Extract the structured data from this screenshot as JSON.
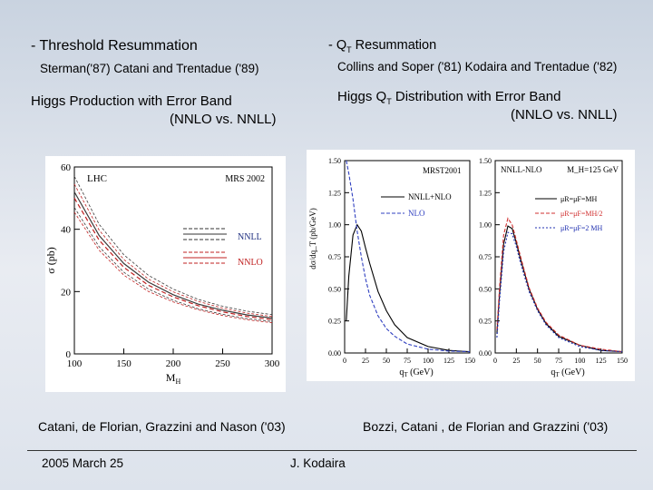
{
  "left": {
    "heading": "Threshold Resummation",
    "bullet": "-",
    "refs": "Sterman('87) Catani and Trentadue ('89)",
    "subtitle_line1": "Higgs Production with Error Band",
    "subtitle_line2": "(NNLO vs. NNLL)",
    "caption": "Catani, de Florian, Grazzini and Nason ('03)"
  },
  "right": {
    "bullet": "-",
    "heading_q": "Q",
    "heading_sub": "T",
    "heading_rest": " Resummation",
    "refs": "Collins and Soper ('81) Kodaira and Trentadue ('82)",
    "subtitle_pre": "Higgs Q",
    "subtitle_sub": "T",
    "subtitle_post": " Distribution with Error Band",
    "subtitle_line2": "(NNLO vs. NNLL)",
    "caption": "Bozzi, Catani , de Florian and Grazzini ('03)"
  },
  "footer": {
    "date": "2005 March 25",
    "author": "J. Kodaira"
  },
  "chart_data": [
    {
      "type": "line",
      "labels": {
        "lhc": "LHC",
        "pdf": "MRS 2002",
        "nnll": "NNLL",
        "nnlo": "NNLO"
      },
      "ylabel": "σ (pb)",
      "xlabel": "M_H",
      "xlabel_main": "M",
      "xlabel_sub": "H",
      "x_ticks": [
        "100",
        "150",
        "200",
        "250",
        "300"
      ],
      "y_ticks": [
        "0",
        "20",
        "40",
        "60"
      ],
      "xlim": [
        100,
        300
      ],
      "ylim": [
        0,
        60
      ],
      "x": [
        100,
        125,
        150,
        175,
        200,
        225,
        250,
        275,
        300
      ],
      "series": [
        {
          "name": "NNLL",
          "values": [
            52,
            38,
            29,
            23,
            19,
            16,
            14,
            12.5,
            11.5
          ],
          "color": "#3a3a3a"
        },
        {
          "name": "NNLO",
          "values": [
            50,
            36.5,
            27.8,
            22,
            18.3,
            15.5,
            13.5,
            12,
            11
          ],
          "color": "#c02020"
        }
      ],
      "band_spread": [
        5,
        3.6,
        2.8,
        2.2,
        1.8,
        1.5,
        1.3,
        1.2,
        1.1
      ]
    },
    {
      "type": "line",
      "labels": {
        "pdf": "MRST2001",
        "nnll_nlo": "NNLL+NLO",
        "nlo": "NLO"
      },
      "ylabel": "dσ/dq_T (pb/GeV)",
      "xlabel": "q_T (GeV)",
      "xlabel_main": "q",
      "xlabel_sub": "T",
      "xlabel_unit": "(GeV)",
      "x_ticks": [
        "0",
        "25",
        "50",
        "75",
        "100",
        "125",
        "150"
      ],
      "y_ticks": [
        "0.00",
        "0.25",
        "0.50",
        "0.75",
        "1.00",
        "1.25",
        "1.50"
      ],
      "xlim": [
        0,
        150
      ],
      "ylim": [
        0,
        1.5
      ],
      "x": [
        2,
        5,
        10,
        15,
        20,
        25,
        30,
        40,
        50,
        60,
        75,
        100,
        125,
        150
      ],
      "series": [
        {
          "name": "NNLL+NLO",
          "values": [
            0.25,
            0.6,
            0.92,
            1.0,
            0.95,
            0.82,
            0.7,
            0.48,
            0.33,
            0.22,
            0.12,
            0.05,
            0.02,
            0.01
          ],
          "color": "#000000"
        },
        {
          "name": "NLO",
          "values": [
            1.5,
            1.4,
            1.2,
            0.95,
            0.75,
            0.58,
            0.45,
            0.29,
            0.19,
            0.13,
            0.07,
            0.03,
            0.015,
            0.01
          ],
          "color": "#3040c0"
        }
      ]
    },
    {
      "type": "line",
      "labels": {
        "title_left": "NNLL-NLO",
        "title_right": "M_H=125 GeV",
        "leg1": "μR=μF=MH",
        "leg2": "μR=μF=MH/2",
        "leg3": "μR=μF=2 MH"
      },
      "ylabel": "",
      "xlabel": "q_T (GeV)",
      "xlabel_main": "q",
      "xlabel_sub": "T",
      "xlabel_unit": "(GeV)",
      "x_ticks": [
        "0",
        "25",
        "50",
        "75",
        "100",
        "125",
        "150"
      ],
      "y_ticks": [
        "0.00",
        "0.25",
        "0.50",
        "0.75",
        "1.00",
        "1.25",
        "1.50"
      ],
      "xlim": [
        0,
        150
      ],
      "ylim": [
        0,
        1.5
      ],
      "x": [
        2,
        5,
        10,
        15,
        20,
        25,
        30,
        40,
        50,
        60,
        75,
        100,
        125,
        150
      ],
      "series": [
        {
          "name": "μR=μF=MH",
          "values": [
            0.15,
            0.45,
            0.85,
            0.99,
            0.97,
            0.86,
            0.73,
            0.5,
            0.34,
            0.23,
            0.13,
            0.06,
            0.02,
            0.01
          ],
          "color": "#000000"
        },
        {
          "name": "μR=μF=MH/2",
          "values": [
            0.18,
            0.5,
            0.92,
            1.05,
            1.0,
            0.88,
            0.75,
            0.51,
            0.35,
            0.24,
            0.14,
            0.06,
            0.03,
            0.01
          ],
          "color": "#d03030"
        },
        {
          "name": "μR=μF=2 MH",
          "values": [
            0.12,
            0.4,
            0.79,
            0.94,
            0.93,
            0.83,
            0.7,
            0.48,
            0.33,
            0.22,
            0.12,
            0.05,
            0.02,
            0.01
          ],
          "color": "#2030b0"
        }
      ]
    }
  ]
}
